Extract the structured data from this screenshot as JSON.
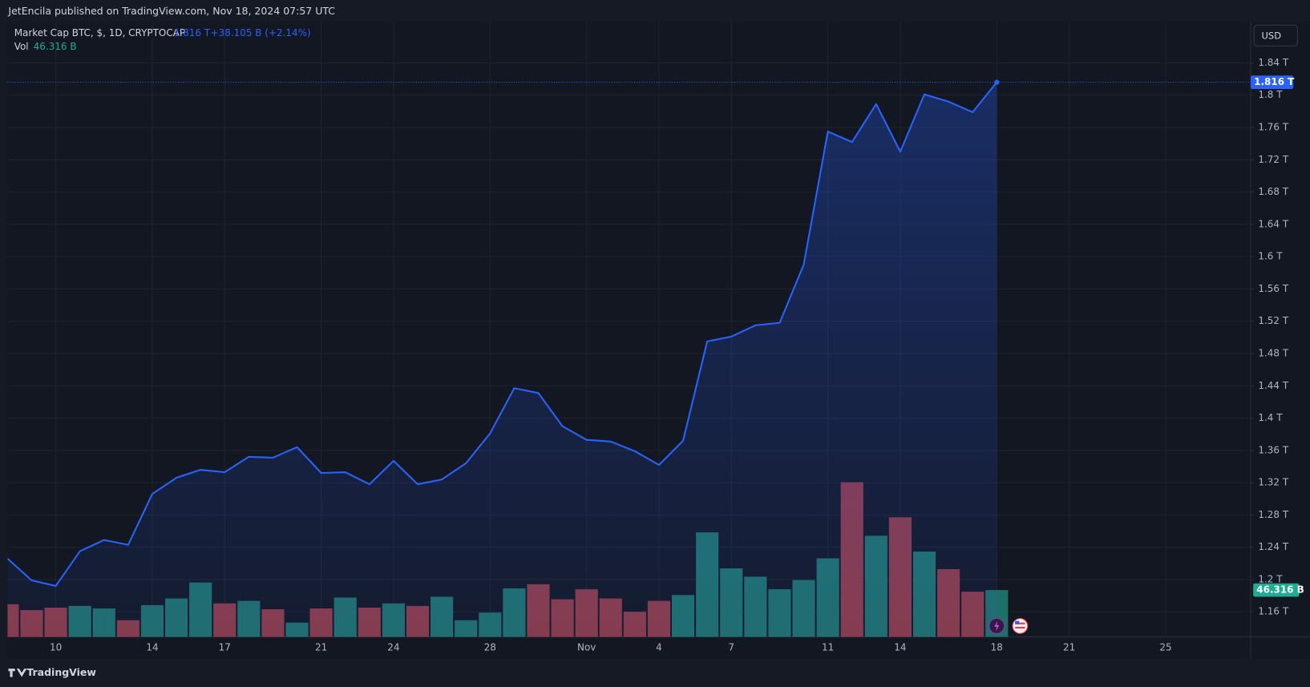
{
  "header": "JetEncila published on TradingView.com, Nov 18, 2024 07:57 UTC",
  "footer": "TradingView",
  "currency_button": "USD",
  "chart_data": {
    "type": "line",
    "change": "+38.105 B (+2.14%)",
    "categories": [
      null,
      null,
      "10",
      null,
      null,
      null,
      "14",
      null,
      null,
      "17",
      null,
      null,
      null,
      "21",
      null,
      null,
      "24",
      null,
      null,
      null,
      "28",
      null,
      null,
      null,
      "Nov",
      null,
      null,
      "4",
      null,
      null,
      "7",
      null,
      null,
      null,
      "11",
      null,
      null,
      "14",
      null,
      null,
      null,
      "18",
      null,
      null,
      "21",
      null,
      null,
      null,
      "25"
    ],
    "series": [
      {
        "name": "Market Cap BTC, $, 1D, CRYPTOCAP",
        "color": "#2962ff",
        "values": [
          1.226,
          1.199,
          1.192,
          1.235,
          1.249,
          1.243,
          1.306,
          1.326,
          1.336,
          1.333,
          1.352,
          1.351,
          1.364,
          1.332,
          1.333,
          1.318,
          1.347,
          1.318,
          1.324,
          1.344,
          1.381,
          1.437,
          1.431,
          1.39,
          1.373,
          1.371,
          1.359,
          1.342,
          1.372,
          1.495,
          1.501,
          1.515,
          1.518,
          1.59,
          1.755,
          1.742,
          1.789,
          1.73,
          1.801,
          1.792,
          1.779,
          1.816,
          null,
          null,
          null,
          null,
          null,
          null,
          null
        ],
        "value_labels": [
          null,
          null,
          null,
          null,
          null,
          null,
          null,
          null,
          null,
          null,
          null,
          null,
          null,
          null,
          null,
          null,
          null,
          null,
          null,
          null,
          null,
          null,
          null,
          null,
          null,
          null,
          null,
          null,
          null,
          null,
          null,
          null,
          null,
          null,
          null,
          null,
          null,
          null,
          null,
          null,
          null,
          "1.816 T",
          null,
          null,
          null,
          null,
          null,
          null,
          null
        ]
      },
      {
        "name": "Vol",
        "type": "bar",
        "values": [
          32.3,
          26.5,
          28.9,
          30.6,
          28.1,
          16.5,
          31.4,
          38.0,
          53.8,
          33.1,
          35.6,
          27.3,
          14.1,
          28.1,
          38.9,
          28.9,
          33.1,
          30.6,
          39.7,
          16.5,
          24.0,
          48.0,
          52.1,
          37.2,
          47.1,
          38.0,
          24.8,
          35.6,
          41.4,
          103.4,
          67.8,
          59.5,
          47.1,
          56.2,
          77.7,
          153.0,
          100.1,
          118.3,
          84.4,
          67.0,
          44.7,
          46.316,
          null,
          null,
          null,
          null,
          null,
          null,
          null
        ],
        "value_labels": [
          null,
          null,
          null,
          null,
          null,
          null,
          null,
          null,
          null,
          null,
          null,
          null,
          null,
          null,
          null,
          null,
          null,
          null,
          null,
          null,
          null,
          null,
          null,
          null,
          null,
          null,
          null,
          null,
          null,
          null,
          null,
          null,
          null,
          null,
          null,
          null,
          null,
          null,
          null,
          null,
          null,
          "46.316 B",
          null,
          null,
          null,
          null,
          null,
          null,
          null
        ],
        "colors": [
          "#8b3a45",
          "#8b3a45",
          "#8b3a45",
          "#1f6f69",
          "#1f6f69",
          "#8b3a45",
          "#1f6f69",
          "#1f6f69",
          "#1f6f69",
          "#8b3a45",
          "#1f6f69",
          "#8b3a45",
          "#1f6f69",
          "#8b3a45",
          "#1f6f69",
          "#8b3a45",
          "#1f6f69",
          "#8b3a45",
          "#1f6f69",
          "#1f6f69",
          "#1f6f69",
          "#1f6f69",
          "#8b3a45",
          "#8b3a45",
          "#8b3a45",
          "#8b3a45",
          "#8b3a45",
          "#8b3a45",
          "#1f6f69",
          "#1f6f69",
          "#1f6f69",
          "#1f6f69",
          "#1f6f69",
          "#1f6f69",
          "#1f6f69",
          "#8b3a45",
          "#1f6f69",
          "#8b3a45",
          "#1f6f69",
          "#8b3a45",
          "#8b3a45",
          "#1f6f69",
          null,
          null,
          null,
          null,
          null,
          null,
          null
        ]
      }
    ],
    "ylim": [
      1.129,
      1.891
    ],
    "yticks": [
      {
        "value": 1.16,
        "label": "1.16 T"
      },
      {
        "value": 1.2,
        "label": "1.2 T"
      },
      {
        "value": 1.24,
        "label": "1.24 T"
      },
      {
        "value": 1.28,
        "label": "1.28 T"
      },
      {
        "value": 1.32,
        "label": "1.32 T"
      },
      {
        "value": 1.36,
        "label": "1.36 T"
      },
      {
        "value": 1.4,
        "label": "1.4 T"
      },
      {
        "value": 1.44,
        "label": "1.44 T"
      },
      {
        "value": 1.48,
        "label": "1.48 T"
      },
      {
        "value": 1.52,
        "label": "1.52 T"
      },
      {
        "value": 1.56,
        "label": "1.56 T"
      },
      {
        "value": 1.6,
        "label": "1.6 T"
      },
      {
        "value": 1.64,
        "label": "1.64 T"
      },
      {
        "value": 1.68,
        "label": "1.68 T"
      },
      {
        "value": 1.72,
        "label": "1.72 T"
      },
      {
        "value": 1.76,
        "label": "1.76 T"
      },
      {
        "value": 1.8,
        "label": "1.8 T"
      },
      {
        "value": 1.84,
        "label": "1.84 T"
      }
    ],
    "grid": true
  }
}
